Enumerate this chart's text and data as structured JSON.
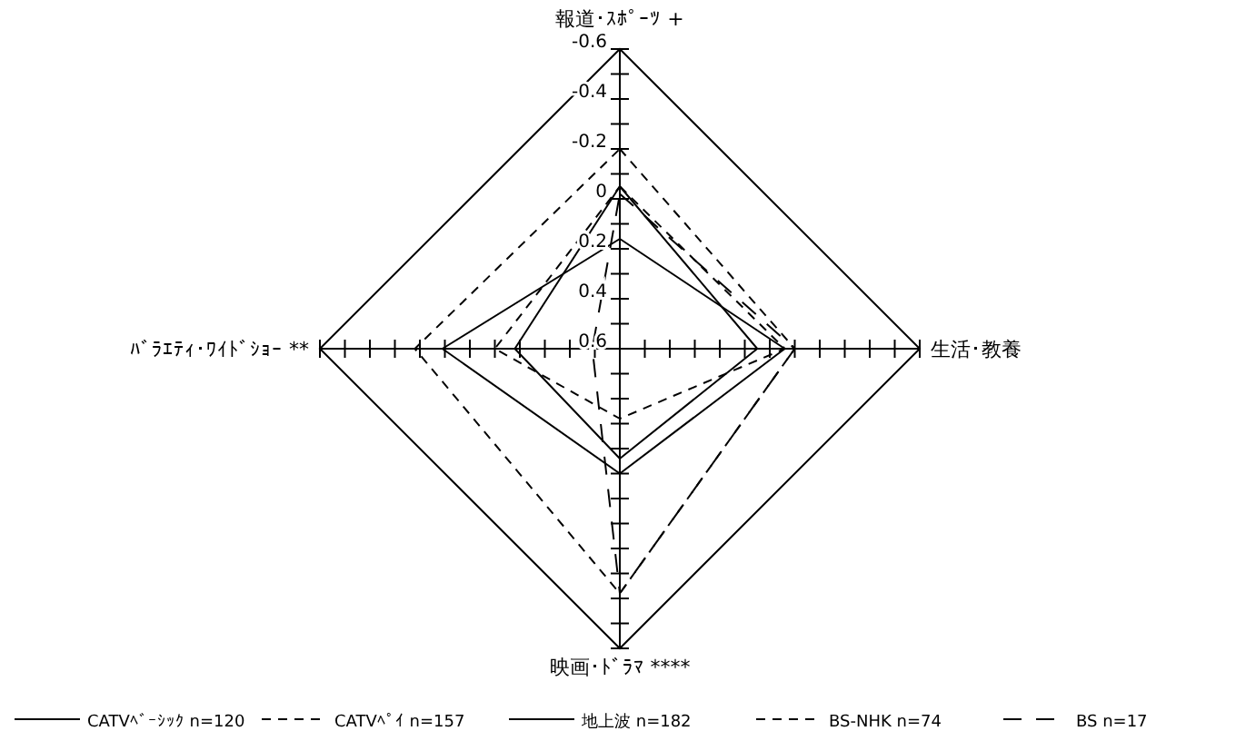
{
  "chart_data": {
    "type": "radar",
    "categories": [
      "報道･ｽﾎﾟｰﾂ +",
      "生活･教養",
      "映画･ﾄﾞﾗﾏ ****",
      "ﾊﾞﾗｴﾃｨ･ﾜｲﾄﾞｼｮｰ **"
    ],
    "ylim": [
      0.6,
      -0.6
    ],
    "yticks": [
      -0.6,
      -0.4,
      -0.2,
      0,
      0.2,
      0.4,
      0.6
    ],
    "grid": false,
    "legend": "bottom",
    "marker": "none",
    "series": [
      {
        "name": "CATVﾍﾞｰｼｯｸ n=120",
        "color": "#000000",
        "line_style": "solid",
        "values": [
          -0.05,
          0.05,
          0.16,
          0.18
        ]
      },
      {
        "name": "CATVﾍﾟｲ n=157",
        "color": "#000000",
        "line_style": "dashed",
        "values": [
          -0.2,
          -0.1,
          -0.38,
          -0.22
        ]
      },
      {
        "name": "地上波 n=182",
        "color": "#000000",
        "line_style": "solid",
        "values": [
          0.16,
          -0.06,
          0.1,
          -0.11
        ]
      },
      {
        "name": "BS-NHK n=74",
        "color": "#000000",
        "line_style": "dashed",
        "values": [
          -0.05,
          -0.06,
          0.32,
          0.1
        ]
      },
      {
        "name": "BS n=17",
        "color": "#000000",
        "line_style": "longdash",
        "values": [
          -0.02,
          -0.1,
          -0.38,
          0.49
        ]
      }
    ]
  }
}
